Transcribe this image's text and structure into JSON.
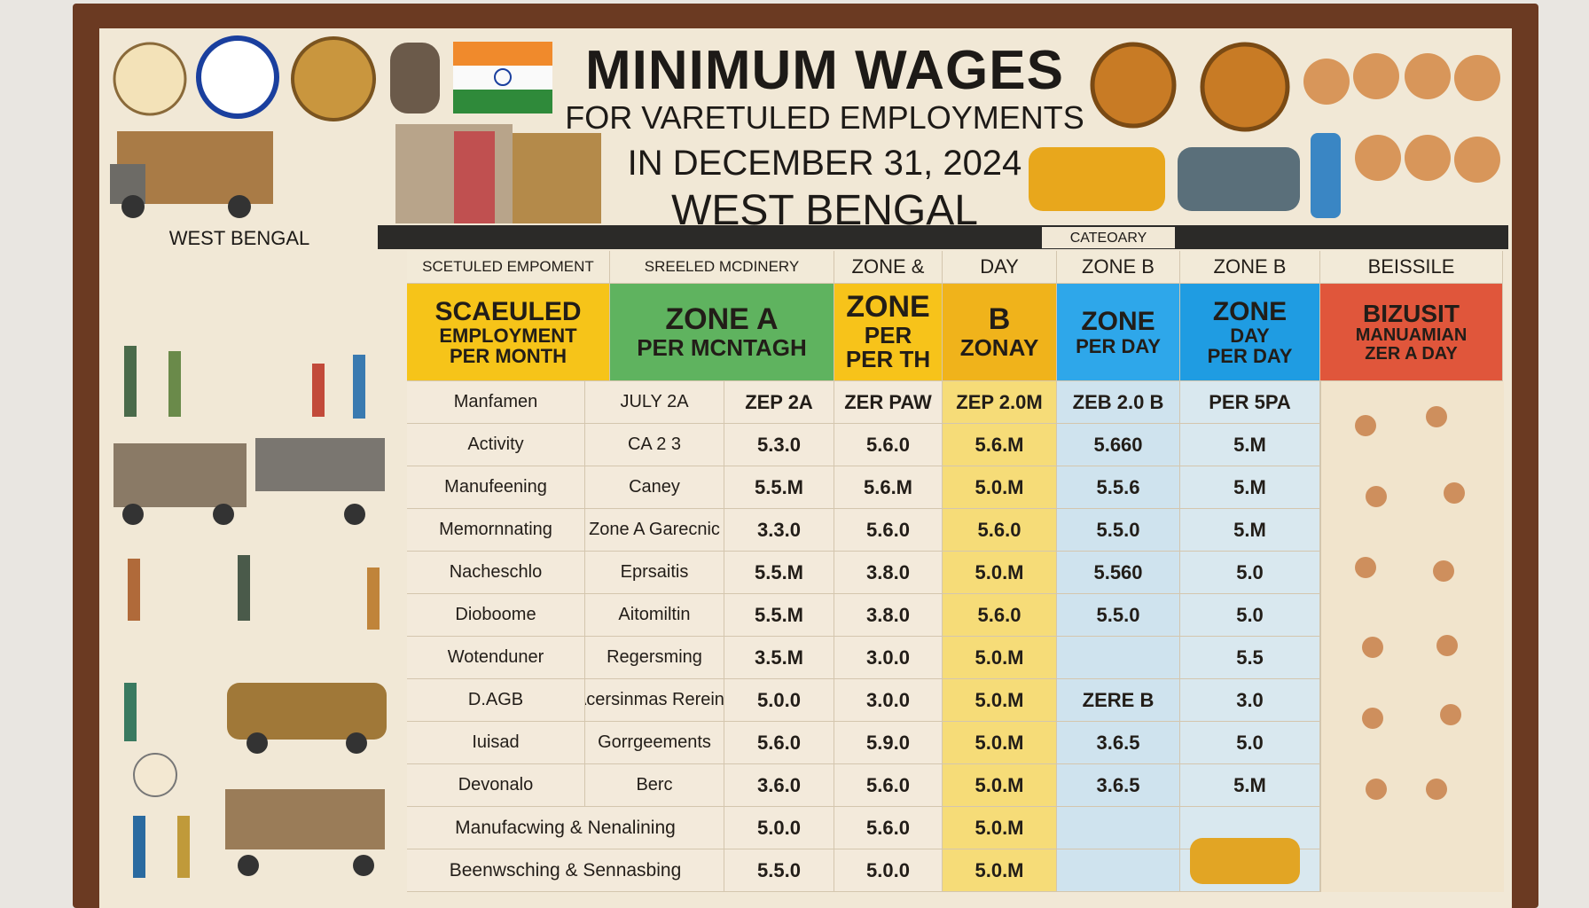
{
  "header": {
    "title": "MINIMUM WAGES",
    "subtitle": "FOR VARETULED EMPLOYMENTS",
    "date": "IN DECEMBER 31, 2024",
    "region": "WEST BENGAL"
  },
  "banner": {
    "left": "WEST BENGAL",
    "category": "CATEOARY"
  },
  "table": {
    "top_headers": [
      "SCETULED EMPOMENT",
      "SREELED MCDINERY",
      "ZONE &",
      "DAY",
      "ZONE B",
      "ZONE B",
      "BEISSILE"
    ],
    "headers": [
      [
        "SCAEULED",
        "EMPLOYMENT",
        "PER MONTH"
      ],
      [
        "ZONE A",
        "PER MCNTAGH"
      ],
      [
        "ZONE",
        "PER",
        "PER TH"
      ],
      [
        "B",
        "ZONAY"
      ],
      [
        "ZONE",
        "PER DAY"
      ],
      [
        "ZONE",
        "DAY",
        "PER DAY"
      ],
      [
        "BIZUSIT",
        "MANUAMIAN",
        "ZER A DAY"
      ]
    ],
    "rows": [
      {
        "label": "Manfamen",
        "sub": "JULY 2A",
        "values": [
          "ZEP 2A",
          "ZER PAW",
          "ZEP 2.0M",
          "ZEB 2.0 B",
          "PER 5PA"
        ]
      },
      {
        "label": "Activity",
        "sub": "CA 2 3",
        "values": [
          "5.3.0",
          "5.6.0",
          "5.6.M",
          "5.660",
          "5.M"
        ]
      },
      {
        "label": "Manufeening",
        "sub": "Caney",
        "values": [
          "5.5.M",
          "5.6.M",
          "5.0.M",
          "5.5.6",
          "5.M"
        ]
      },
      {
        "label": "Memornnating",
        "sub": "Zone A Garecnic",
        "values": [
          "3.3.0",
          "5.6.0",
          "5.6.0",
          "5.5.0",
          "5.M"
        ]
      },
      {
        "label": "Nacheschlo",
        "sub": "Eprsaitis",
        "values": [
          "5.5.M",
          "3.8.0",
          "5.0.M",
          "5.560",
          "5.0"
        ]
      },
      {
        "label": "Dioboome",
        "sub": "Aitomiltin",
        "values": [
          "5.5.M",
          "3.8.0",
          "5.6.0",
          "5.5.0",
          "5.0"
        ]
      },
      {
        "label": "Wotenduner",
        "sub": "Regersming",
        "values": [
          "3.5.M",
          "3.0.0",
          "5.0.M",
          null,
          "5.5"
        ]
      },
      {
        "label": "D.AGB",
        "sub": "Acersinmas Rereing",
        "values": [
          "5.0.0",
          "3.0.0",
          "5.0.M",
          "ZERE B",
          "3.0"
        ]
      },
      {
        "label": "Iuisad",
        "sub": "Gorrgeements",
        "values": [
          "5.6.0",
          "5.9.0",
          "5.0.M",
          "3.6.5",
          "5.0"
        ]
      },
      {
        "label": "Devonalo",
        "sub": "Berc",
        "values": [
          "3.6.0",
          "5.6.0",
          "5.0.M",
          "3.6.5",
          "5.M"
        ]
      },
      {
        "label": "Manufacwing & Nenalining",
        "values": [
          "5.0.0",
          "5.6.0",
          "5.0.M",
          null,
          null
        ]
      },
      {
        "label": "Beenwsching & Sennasbing",
        "values": [
          "5.5.0",
          "5.0.0",
          "5.0.M",
          null,
          null
        ]
      }
    ]
  }
}
